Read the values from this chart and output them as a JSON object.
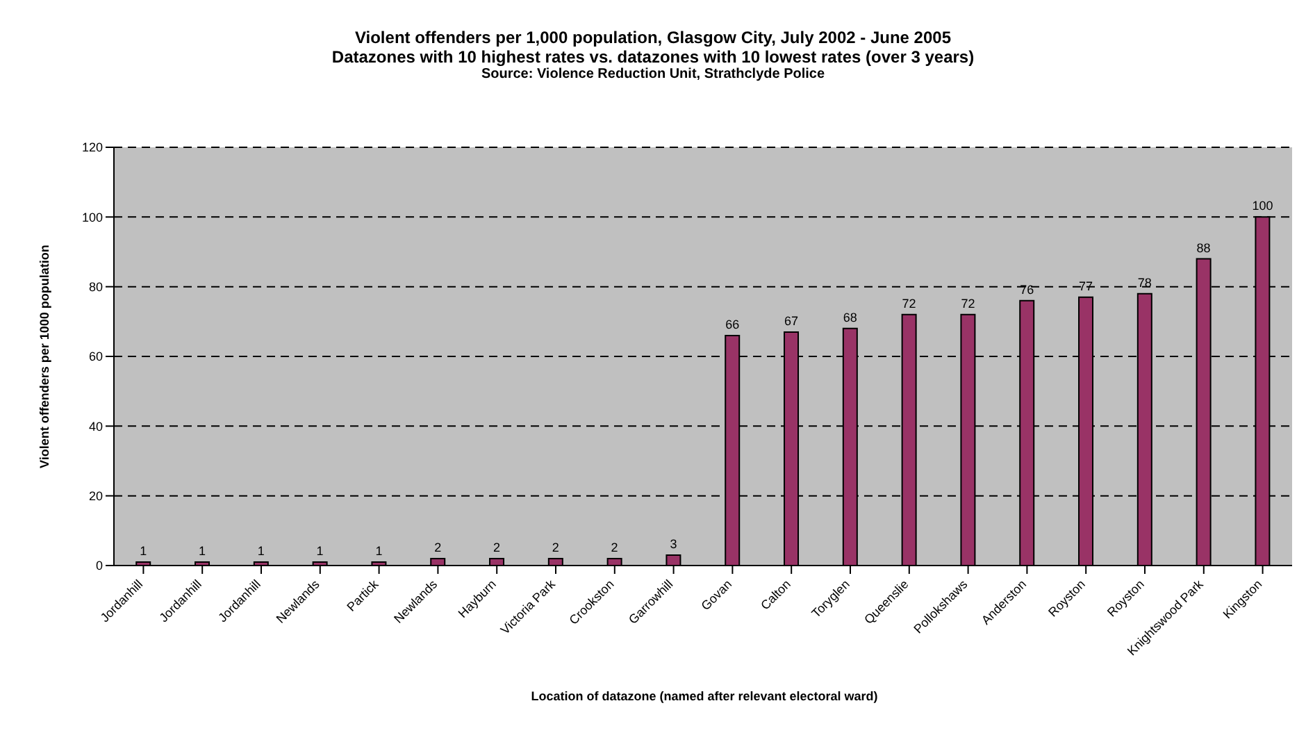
{
  "chart_data": {
    "type": "bar",
    "title": "Violent offenders per 1,000 population, Glasgow City, July 2002 - June 2005",
    "subtitle": "Datazones with 10 highest rates vs. datazones with 10 lowest rates (over 3 years)",
    "annotations": [
      "Source: Violence Reduction Unit, Strathclyde Police"
    ],
    "xlabel": "Location of datazone (named after relevant electoral ward)",
    "ylabel": "Violent offenders per 1000 population",
    "categories": [
      "Jordanhill",
      "Jordanhill",
      "Jordanhill",
      "Newlands",
      "Partick",
      "Newlands",
      "Hayburn",
      "Victoria Park",
      "Crookston",
      "Garrowhill",
      "Govan",
      "Calton",
      "Toryglen",
      "Queenslie",
      "Pollokshaws",
      "Anderston",
      "Royston",
      "Royston",
      "Knightswood Park",
      "Kingston"
    ],
    "values": [
      1,
      1,
      1,
      1,
      1,
      2,
      2,
      2,
      2,
      3,
      66,
      67,
      68,
      72,
      72,
      76,
      77,
      78,
      88,
      100
    ],
    "color": "#993366",
    "ylim": [
      0,
      120
    ],
    "yticks": [
      0,
      20,
      40,
      60,
      80,
      100,
      120
    ],
    "grid": "y",
    "data_labels": true
  }
}
